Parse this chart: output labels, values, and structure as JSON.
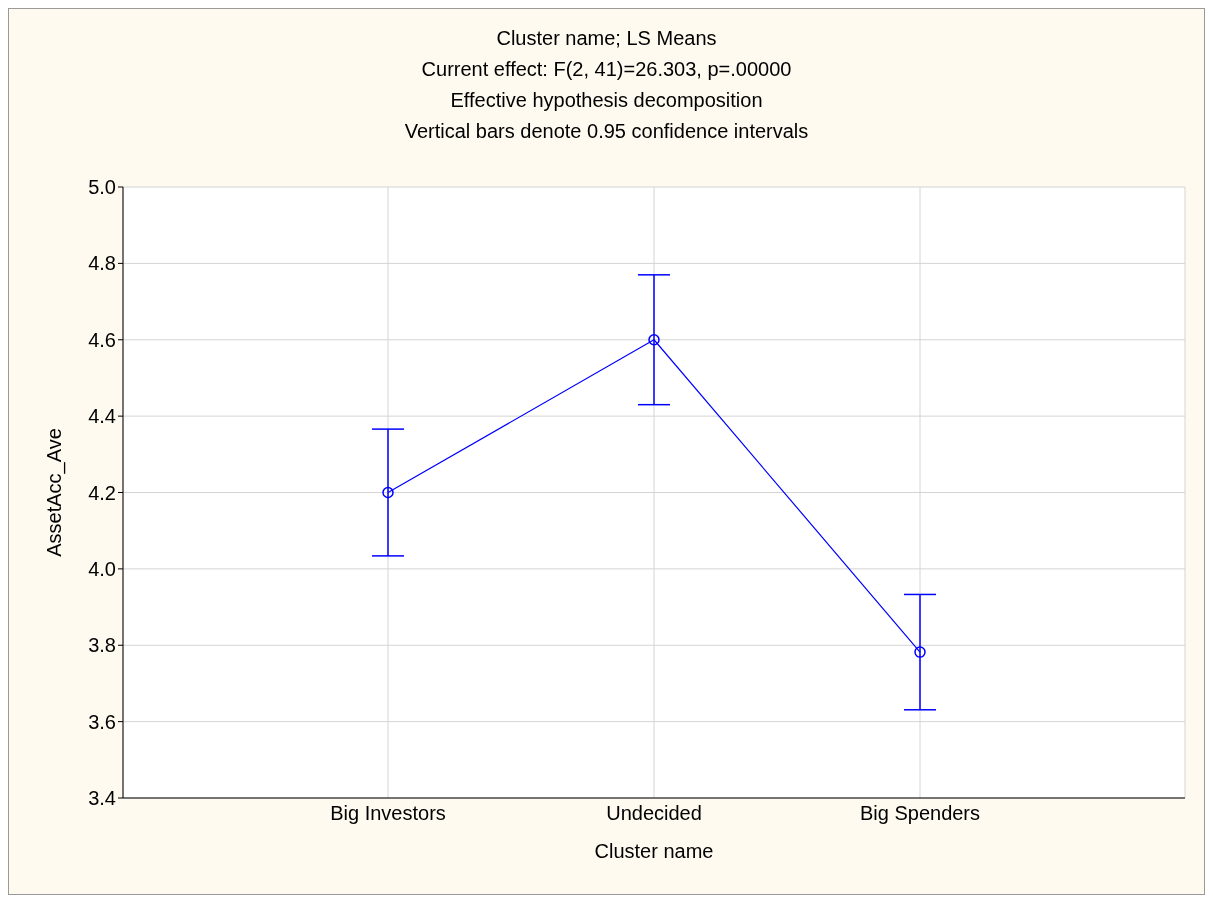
{
  "chart_data": {
    "type": "line",
    "title": "Cluster name; LS Means",
    "annotations": [
      "Current effect: F(2, 41)=26.303, p=.00000",
      "Effective hypothesis decomposition",
      "Vertical bars denote 0.95 confidence intervals"
    ],
    "xlabel": "Cluster name",
    "ylabel": "AssetAcc_Ave",
    "categories": [
      "Big Investors",
      "Undecided",
      "Big Spenders"
    ],
    "series": [
      {
        "color": "#0000ff",
        "values": [
          4.2,
          4.6,
          3.782
        ],
        "errors": [
          0.166,
          0.17,
          0.151
        ]
      }
    ],
    "ylim": [
      3.4,
      5.0
    ],
    "yticks": [
      3.4,
      3.6,
      3.8,
      {
        "value": 4,
        "label": "4.0"
      },
      4.2,
      4.4,
      4.6,
      4.8,
      {
        "value": 5,
        "label": "5.0"
      }
    ],
    "grid": true,
    "marker": "circle",
    "line_style": "solid"
  }
}
